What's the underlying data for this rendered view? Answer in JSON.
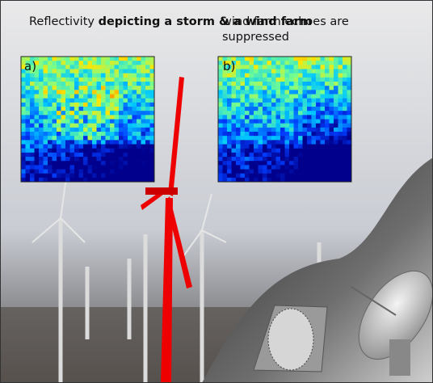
{
  "captions": {
    "left": {
      "normal": "Reflectivity",
      "bold": "depicting a storm & a wind farm"
    },
    "right": "wind farm echoes are suppressed"
  },
  "panels": [
    {
      "label": "a)"
    },
    {
      "label": "b)"
    }
  ]
}
